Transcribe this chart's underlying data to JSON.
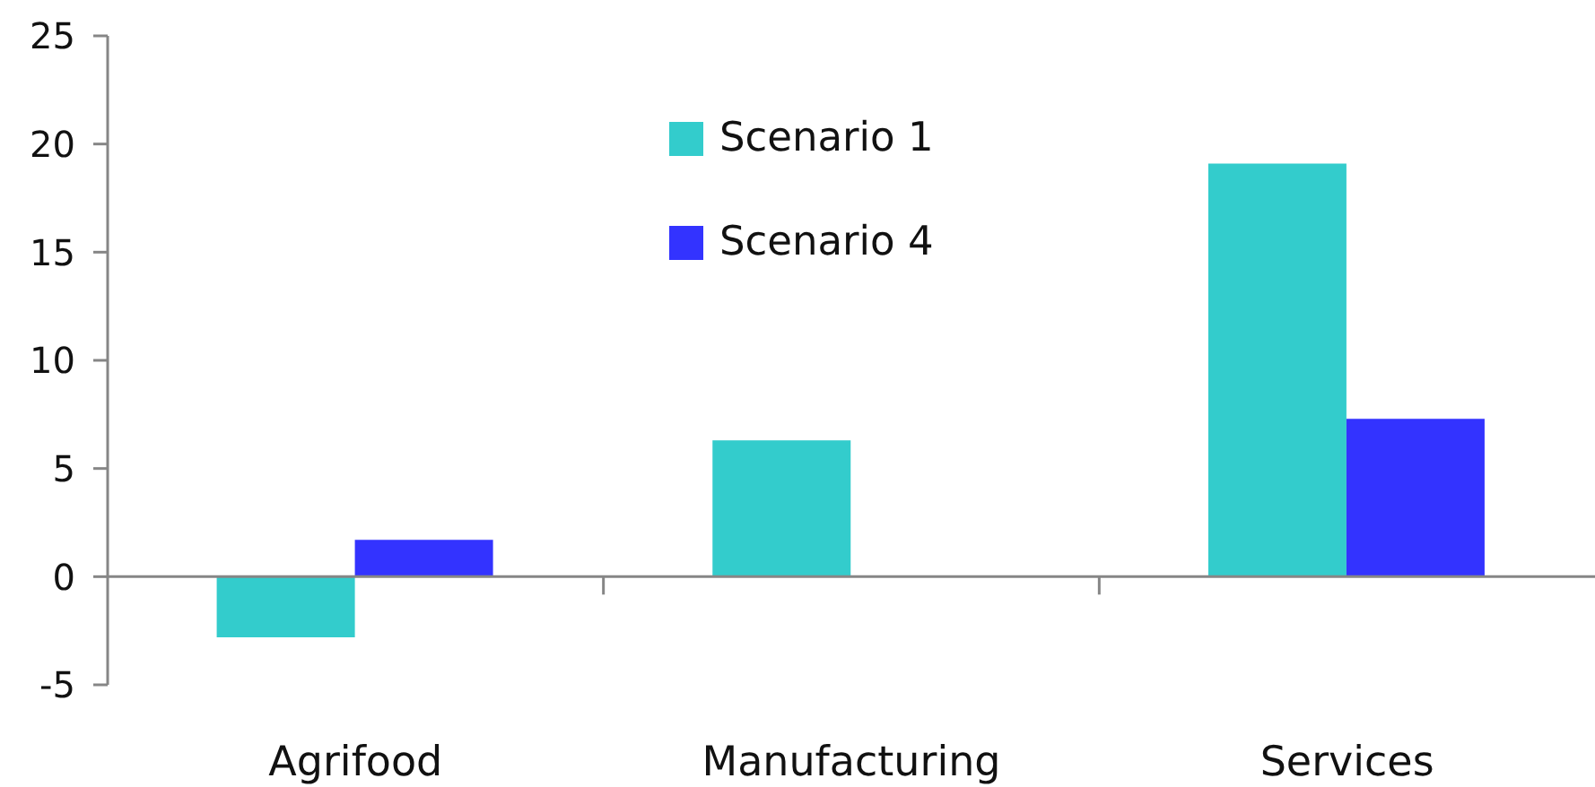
{
  "chart_data": {
    "type": "bar",
    "categories": [
      "Agrifood",
      "Manufacturing",
      "Services"
    ],
    "series": [
      {
        "name": "Scenario 1",
        "color": "#33cccc",
        "values": [
          -2.8,
          6.3,
          19.1
        ]
      },
      {
        "name": "Scenario 4",
        "color": "#3333ff",
        "values": [
          1.7,
          null,
          7.3
        ]
      }
    ],
    "ylim": [
      -5,
      25
    ],
    "yticks": [
      -5,
      0,
      5,
      10,
      15,
      20,
      25
    ],
    "grid": false,
    "legend": "top",
    "ref_lines": [
      {
        "axis": "y",
        "value": 0,
        "color": "#868686"
      }
    ]
  }
}
